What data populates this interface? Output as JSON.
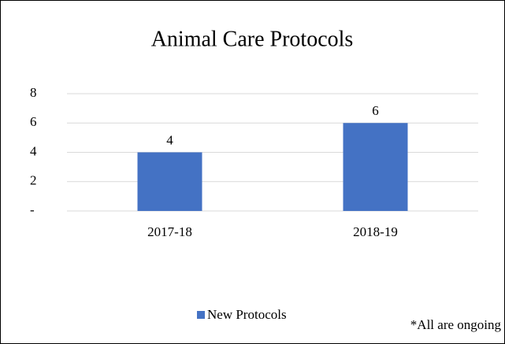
{
  "chart_data": {
    "type": "bar",
    "title": "Animal Care Protocols",
    "categories": [
      "2017-18",
      "2018-19"
    ],
    "series": [
      {
        "name": "New Protocols",
        "color": "#4472c4",
        "values": [
          4,
          6
        ]
      }
    ],
    "ylim": [
      0,
      8
    ],
    "yticks": [
      {
        "value": 0,
        "label": "-"
      },
      2,
      4,
      6,
      8
    ],
    "grid": true,
    "legend": "bottom",
    "annotation": "*All are ongoing"
  }
}
